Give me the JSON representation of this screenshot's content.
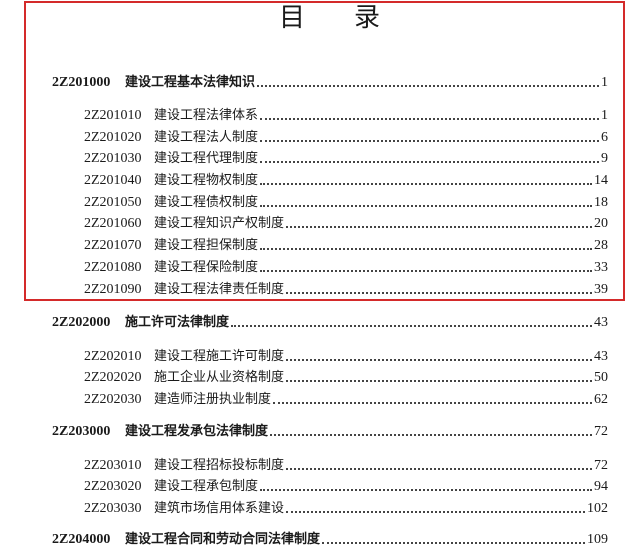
{
  "title": [
    "目",
    "录"
  ],
  "highlight_color": "#d42a2a",
  "entries": [
    {
      "code": "2Z201000",
      "name": "建设工程基本法律知识",
      "page": "1",
      "level": 1
    },
    {
      "code": "2Z201010",
      "name": "建设工程法律体系",
      "page": "1",
      "level": 2
    },
    {
      "code": "2Z201020",
      "name": "建设工程法人制度",
      "page": "6",
      "level": 2
    },
    {
      "code": "2Z201030",
      "name": "建设工程代理制度",
      "page": "9",
      "level": 2
    },
    {
      "code": "2Z201040",
      "name": "建设工程物权制度",
      "page": "14",
      "level": 2
    },
    {
      "code": "2Z201050",
      "name": "建设工程债权制度",
      "page": "18",
      "level": 2
    },
    {
      "code": "2Z201060",
      "name": "建设工程知识产权制度",
      "page": "20",
      "level": 2
    },
    {
      "code": "2Z201070",
      "name": "建设工程担保制度",
      "page": "28",
      "level": 2
    },
    {
      "code": "2Z201080",
      "name": "建设工程保险制度",
      "page": "33",
      "level": 2
    },
    {
      "code": "2Z201090",
      "name": "建设工程法律责任制度",
      "page": "39",
      "level": 2
    },
    {
      "code": "2Z202000",
      "name": "施工许可法律制度",
      "page": "43",
      "level": 1
    },
    {
      "code": "2Z202010",
      "name": "建设工程施工许可制度",
      "page": "43",
      "level": 2
    },
    {
      "code": "2Z202020",
      "name": "施工企业从业资格制度",
      "page": "50",
      "level": 2
    },
    {
      "code": "2Z202030",
      "name": "建造师注册执业制度",
      "page": "62",
      "level": 2
    },
    {
      "code": "2Z203000",
      "name": "建设工程发承包法律制度",
      "page": "72",
      "level": 1
    },
    {
      "code": "2Z203010",
      "name": "建设工程招标投标制度",
      "page": "72",
      "level": 2
    },
    {
      "code": "2Z203020",
      "name": "建设工程承包制度",
      "page": "94",
      "level": 2
    },
    {
      "code": "2Z203030",
      "name": "建筑市场信用体系建设",
      "page": "102",
      "level": 2
    },
    {
      "code": "2Z204000",
      "name": "建设工程合同和劳动合同法律制度",
      "page": "109",
      "level": 1
    }
  ]
}
